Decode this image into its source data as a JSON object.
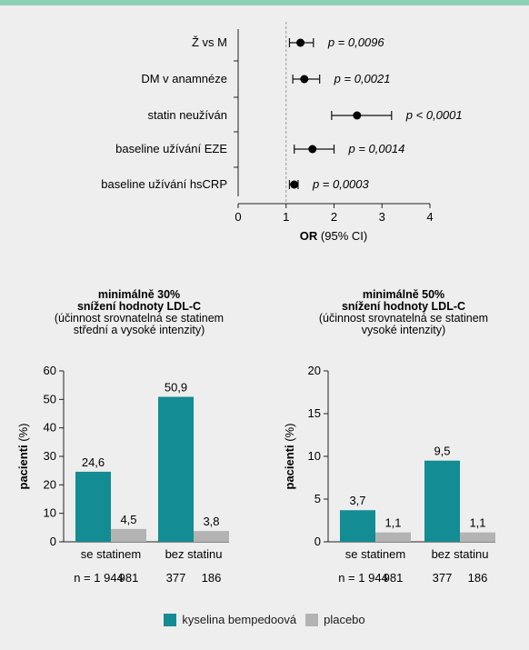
{
  "chart_data": [
    {
      "type": "forest",
      "xlabel_bold": "OR",
      "xlabel_rest": " (95% CI)",
      "xlim": [
        0,
        4
      ],
      "xticks": [
        "0",
        "1",
        "2",
        "3",
        "4"
      ],
      "reference_line": 1,
      "rows": [
        {
          "label": "Ž vs M",
          "or": 1.3,
          "ci": [
            1.07,
            1.57
          ],
          "p": "p = 0,0096"
        },
        {
          "label": "DM v anamnéze",
          "or": 1.38,
          "ci": [
            1.14,
            1.7
          ],
          "p": "p = 0,0021"
        },
        {
          "label": "statin neužíván",
          "or": 2.48,
          "ci": [
            1.95,
            3.2
          ],
          "p": "p < 0,0001"
        },
        {
          "label": "baseline užívání EZE",
          "or": 1.55,
          "ci": [
            1.17,
            2.0
          ],
          "p": "p = 0,0014"
        },
        {
          "label": "baseline užívání hsCRP",
          "or": 1.17,
          "ci": [
            1.07,
            1.25
          ],
          "p": "p = 0,0003"
        }
      ]
    },
    {
      "type": "bar",
      "title_lines": [
        "minimálně 30%",
        "snížení hodnoty LDL-C"
      ],
      "subtitle_lines": [
        "(účinnost srovnatelná se statinem",
        "střední a vysoké intenzity)"
      ],
      "ylabel_bold": "pacienti",
      "ylabel_rest": " (%)",
      "ylim": [
        0,
        60
      ],
      "yticks": [
        0,
        10,
        20,
        30,
        40,
        50,
        60
      ],
      "categories": [
        "se statinem",
        "bez statinu"
      ],
      "series": [
        {
          "name": "kyselina bempedoová",
          "values": [
            24.6,
            50.9
          ],
          "labels": [
            "24,6",
            "50,9"
          ]
        },
        {
          "name": "placebo",
          "values": [
            4.5,
            3.8
          ],
          "labels": [
            "4,5",
            "3,8"
          ]
        }
      ],
      "n_prefix": "n = ",
      "n_values": [
        [
          "1 944",
          "981"
        ],
        [
          "377",
          "186"
        ]
      ]
    },
    {
      "type": "bar",
      "title_lines": [
        "minimálně 50%",
        "snížení hodnoty LDL-C"
      ],
      "subtitle_lines": [
        "(účinnost srovnatelná se statinem",
        "vysoké intenzity)"
      ],
      "ylabel_bold": "pacienti",
      "ylabel_rest": " (%)",
      "ylim": [
        0,
        20
      ],
      "yticks": [
        0,
        5,
        10,
        15,
        20
      ],
      "categories": [
        "se statinem",
        "bez statinu"
      ],
      "series": [
        {
          "name": "kyselina bempedoová",
          "values": [
            3.7,
            9.5
          ],
          "labels": [
            "3,7",
            "9,5"
          ]
        },
        {
          "name": "placebo",
          "values": [
            1.1,
            1.1
          ],
          "labels": [
            "1,1",
            "1,1"
          ]
        }
      ],
      "n_prefix": "n = ",
      "n_values": [
        [
          "1 944",
          "981"
        ],
        [
          "377",
          "186"
        ]
      ]
    }
  ],
  "legend": [
    {
      "name": "kyselina bempedoová",
      "color": "#138c93"
    },
    {
      "name": "placebo",
      "color": "#b3b3b3"
    }
  ],
  "colors": {
    "teal": "#138c93",
    "gray": "#b3b3b3",
    "accent": "#8fd1b5"
  }
}
